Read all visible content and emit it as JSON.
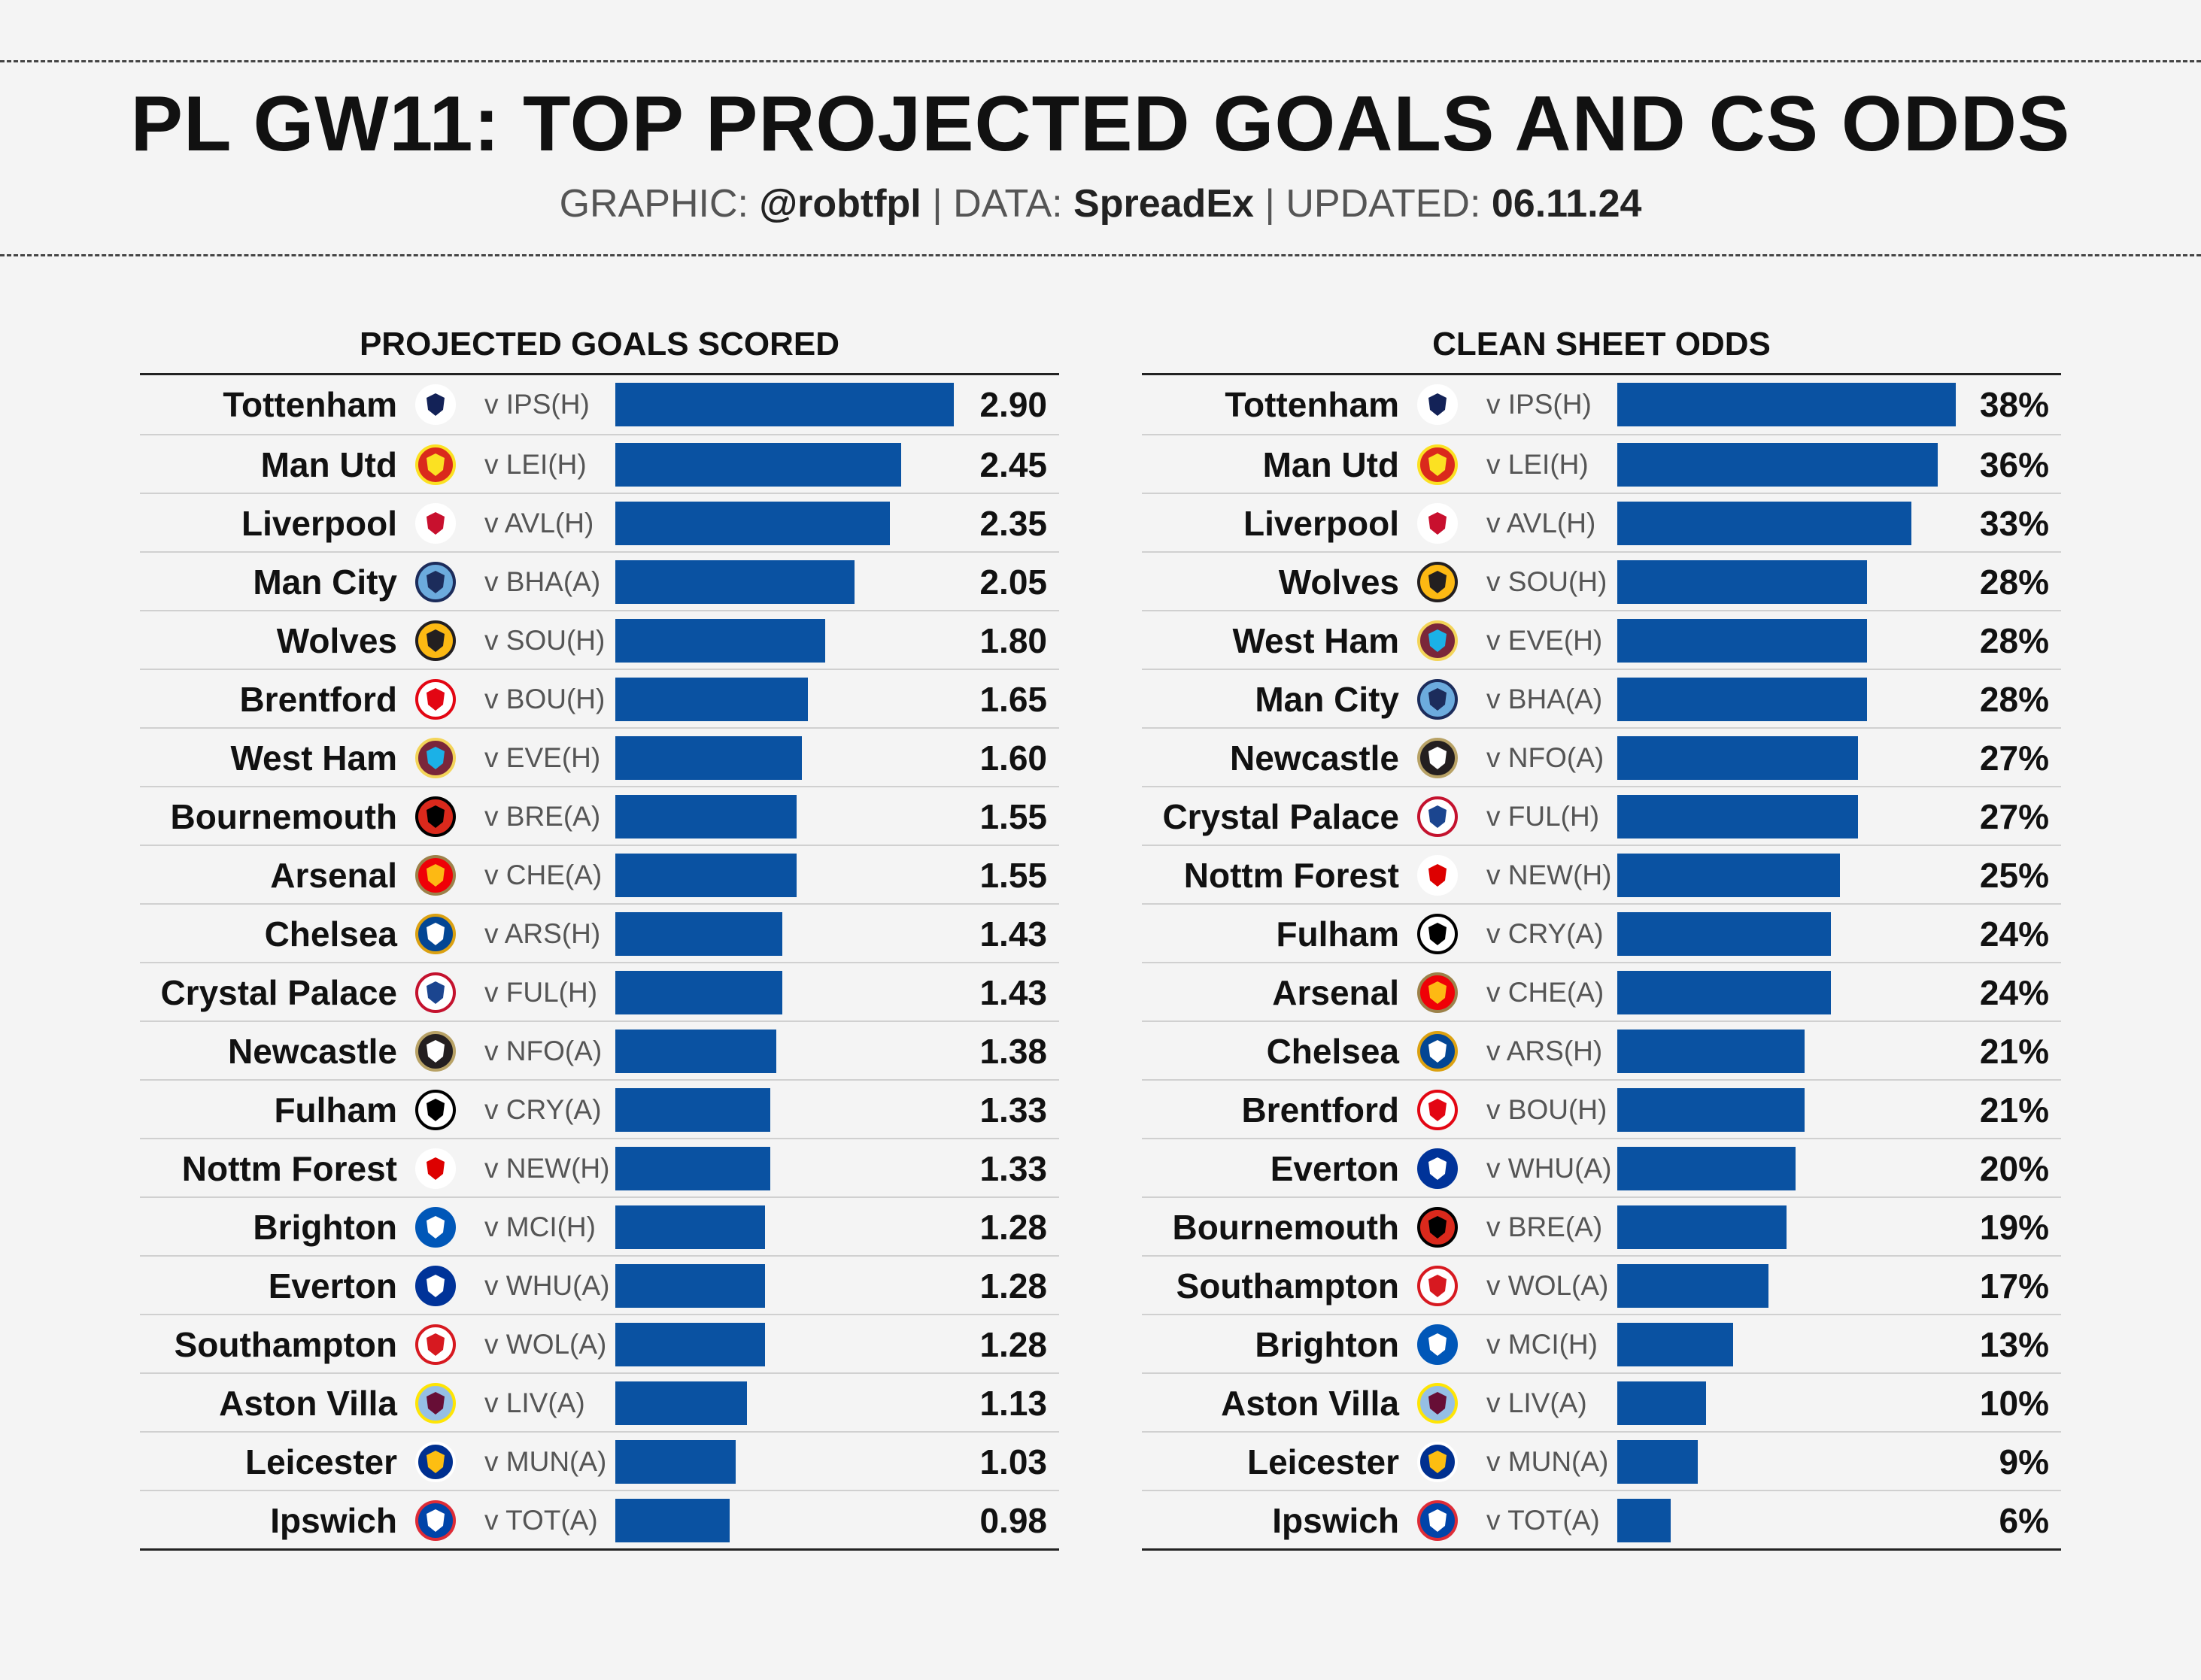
{
  "header": {
    "title": "PL GW11: TOP PROJECTED GOALS AND CS ODDS",
    "graphic_label": "GRAPHIC:",
    "graphic_value": "@robtfpl",
    "data_label": "DATA:",
    "data_value": "SpreadEx",
    "updated_label": "UPDATED:",
    "updated_value": "06.11.24",
    "separator": "|"
  },
  "colors": {
    "bar": "#0a52a2",
    "background": "#f4f4f4"
  },
  "chart_data": [
    {
      "type": "bar",
      "orientation": "horizontal",
      "title": "PROJECTED GOALS SCORED",
      "xlim": [
        0,
        2.9
      ],
      "grid": false,
      "categories": [
        "Tottenham",
        "Man Utd",
        "Liverpool",
        "Man City",
        "Wolves",
        "Brentford",
        "West Ham",
        "Bournemouth",
        "Arsenal",
        "Chelsea",
        "Crystal Palace",
        "Newcastle",
        "Fulham",
        "Nottm Forest",
        "Brighton",
        "Everton",
        "Southampton",
        "Aston Villa",
        "Leicester",
        "Ipswich"
      ],
      "fixtures": [
        "v IPS(H)",
        "v LEI(H)",
        "v AVL(H)",
        "v BHA(A)",
        "v SOU(H)",
        "v BOU(H)",
        "v EVE(H)",
        "v BRE(A)",
        "v CHE(A)",
        "v ARS(H)",
        "v FUL(H)",
        "v NFO(A)",
        "v CRY(A)",
        "v NEW(H)",
        "v MCI(H)",
        "v WHU(A)",
        "v WOL(A)",
        "v LIV(A)",
        "v MUN(A)",
        "v TOT(A)"
      ],
      "values": [
        2.9,
        2.45,
        2.35,
        2.05,
        1.8,
        1.65,
        1.6,
        1.55,
        1.55,
        1.43,
        1.43,
        1.38,
        1.33,
        1.33,
        1.28,
        1.28,
        1.28,
        1.13,
        1.03,
        0.98
      ],
      "labels": [
        "2.90",
        "2.45",
        "2.35",
        "2.05",
        "1.80",
        "1.65",
        "1.60",
        "1.55",
        "1.55",
        "1.43",
        "1.43",
        "1.38",
        "1.33",
        "1.33",
        "1.28",
        "1.28",
        "1.28",
        "1.13",
        "1.03",
        "0.98"
      ]
    },
    {
      "type": "bar",
      "orientation": "horizontal",
      "title": "CLEAN SHEET ODDS",
      "xlim": [
        0,
        38
      ],
      "grid": false,
      "categories": [
        "Tottenham",
        "Man Utd",
        "Liverpool",
        "Wolves",
        "West Ham",
        "Man City",
        "Newcastle",
        "Crystal Palace",
        "Nottm Forest",
        "Fulham",
        "Arsenal",
        "Chelsea",
        "Brentford",
        "Everton",
        "Bournemouth",
        "Southampton",
        "Brighton",
        "Aston Villa",
        "Leicester",
        "Ipswich"
      ],
      "fixtures": [
        "v IPS(H)",
        "v LEI(H)",
        "v AVL(H)",
        "v SOU(H)",
        "v EVE(H)",
        "v BHA(A)",
        "v NFO(A)",
        "v FUL(H)",
        "v NEW(H)",
        "v CRY(A)",
        "v CHE(A)",
        "v ARS(H)",
        "v BOU(H)",
        "v WHU(A)",
        "v BRE(A)",
        "v WOL(A)",
        "v MCI(H)",
        "v LIV(A)",
        "v MUN(A)",
        "v TOT(A)"
      ],
      "values": [
        38,
        36,
        33,
        28,
        28,
        28,
        27,
        27,
        25,
        24,
        24,
        21,
        21,
        20,
        19,
        17,
        13,
        10,
        9,
        6
      ],
      "labels": [
        "38%",
        "36%",
        "33%",
        "28%",
        "28%",
        "28%",
        "27%",
        "27%",
        "25%",
        "24%",
        "24%",
        "21%",
        "21%",
        "20%",
        "19%",
        "17%",
        "13%",
        "10%",
        "9%",
        "6%"
      ]
    }
  ],
  "crests": {
    "Tottenham": {
      "icon": "tottenham-crest-icon",
      "bg": "#ffffff",
      "fg": "#132257",
      "ring": "#ffffff"
    },
    "Man Utd": {
      "icon": "man-utd-crest-icon",
      "bg": "#da291c",
      "fg": "#fbe122",
      "ring": "#fbe122"
    },
    "Liverpool": {
      "icon": "liverpool-crest-icon",
      "bg": "#ffffff",
      "fg": "#c8102e",
      "ring": "#ffffff"
    },
    "Man City": {
      "icon": "man-city-crest-icon",
      "bg": "#6cabdd",
      "fg": "#1c2c5b",
      "ring": "#1c2c5b"
    },
    "Wolves": {
      "icon": "wolves-crest-icon",
      "bg": "#fdb913",
      "fg": "#231f20",
      "ring": "#231f20"
    },
    "Brentford": {
      "icon": "brentford-crest-icon",
      "bg": "#ffffff",
      "fg": "#e30613",
      "ring": "#e30613"
    },
    "West Ham": {
      "icon": "west-ham-crest-icon",
      "bg": "#7a263a",
      "fg": "#1bb1e7",
      "ring": "#f3d459"
    },
    "Bournemouth": {
      "icon": "bournemouth-crest-icon",
      "bg": "#da291c",
      "fg": "#000000",
      "ring": "#000000"
    },
    "Arsenal": {
      "icon": "arsenal-crest-icon",
      "bg": "#ef0107",
      "fg": "#fdb913",
      "ring": "#9c824a"
    },
    "Chelsea": {
      "icon": "chelsea-crest-icon",
      "bg": "#034694",
      "fg": "#ffffff",
      "ring": "#dba111"
    },
    "Crystal Palace": {
      "icon": "crystal-palace-crest-icon",
      "bg": "#ffffff",
      "fg": "#1b458f",
      "ring": "#c4122e"
    },
    "Newcastle": {
      "icon": "newcastle-crest-icon",
      "bg": "#241f20",
      "fg": "#ffffff",
      "ring": "#b8a266"
    },
    "Fulham": {
      "icon": "fulham-crest-icon",
      "bg": "#ffffff",
      "fg": "#000000",
      "ring": "#000000"
    },
    "Nottm Forest": {
      "icon": "nottm-forest-crest-icon",
      "bg": "#ffffff",
      "fg": "#dd0000",
      "ring": "#ffffff"
    },
    "Brighton": {
      "icon": "brighton-crest-icon",
      "bg": "#0057b8",
      "fg": "#ffffff",
      "ring": "#0057b8"
    },
    "Everton": {
      "icon": "everton-crest-icon",
      "bg": "#003399",
      "fg": "#ffffff",
      "ring": "#003399"
    },
    "Southampton": {
      "icon": "southampton-crest-icon",
      "bg": "#ffffff",
      "fg": "#d71920",
      "ring": "#d71920"
    },
    "Aston Villa": {
      "icon": "aston-villa-crest-icon",
      "bg": "#95bfe5",
      "fg": "#670e36",
      "ring": "#fee505"
    },
    "Leicester": {
      "icon": "leicester-crest-icon",
      "bg": "#003090",
      "fg": "#fdbe11",
      "ring": "#ffffff"
    },
    "Ipswich": {
      "icon": "ipswich-crest-icon",
      "bg": "#0044a9",
      "fg": "#ffffff",
      "ring": "#de2c37"
    }
  }
}
